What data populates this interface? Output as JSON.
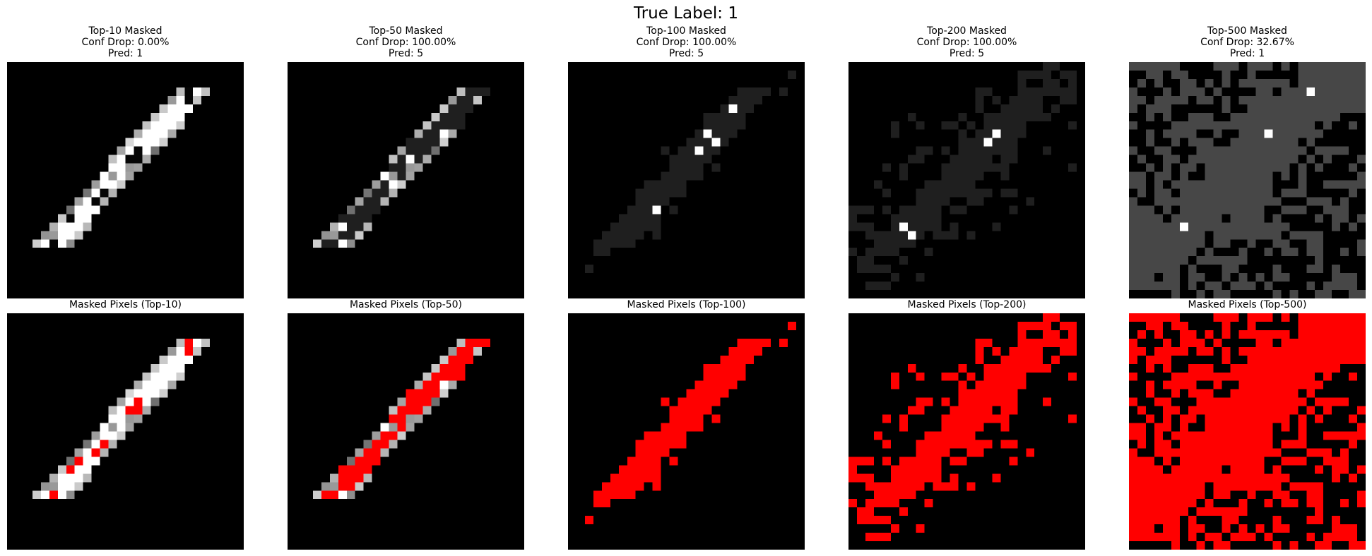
{
  "figure": {
    "suptitle": "True Label: 1",
    "top_row": [
      {
        "k": 10,
        "title": [
          "Top-10 Masked",
          "Conf Drop: 0.00%",
          "Pred: 1"
        ]
      },
      {
        "k": 50,
        "title": [
          "Top-50 Masked",
          "Conf Drop: 100.00%",
          "Pred: 5"
        ]
      },
      {
        "k": 100,
        "title": [
          "Top-100 Masked",
          "Conf Drop: 100.00%",
          "Pred: 5"
        ]
      },
      {
        "k": 200,
        "title": [
          "Top-200 Masked",
          "Conf Drop: 100.00%",
          "Pred: 5"
        ]
      },
      {
        "k": 500,
        "title": [
          "Top-500 Masked",
          "Conf Drop: 32.67%",
          "Pred: 1"
        ]
      }
    ],
    "bottom_row": [
      {
        "k": 10,
        "title": "Masked Pixels (Top-10)"
      },
      {
        "k": 50,
        "title": "Masked Pixels (Top-50)"
      },
      {
        "k": 100,
        "title": "Masked Pixels (Top-100)"
      },
      {
        "k": 200,
        "title": "Masked Pixels (Top-200)"
      },
      {
        "k": 500,
        "title": "Masked Pixels (Top-500)"
      }
    ],
    "colors": {
      "background": "#000000",
      "digit": "#ffffff",
      "mask_highlight": "#ff0000",
      "masked_gray_top500": "#4a4a4a"
    }
  }
}
